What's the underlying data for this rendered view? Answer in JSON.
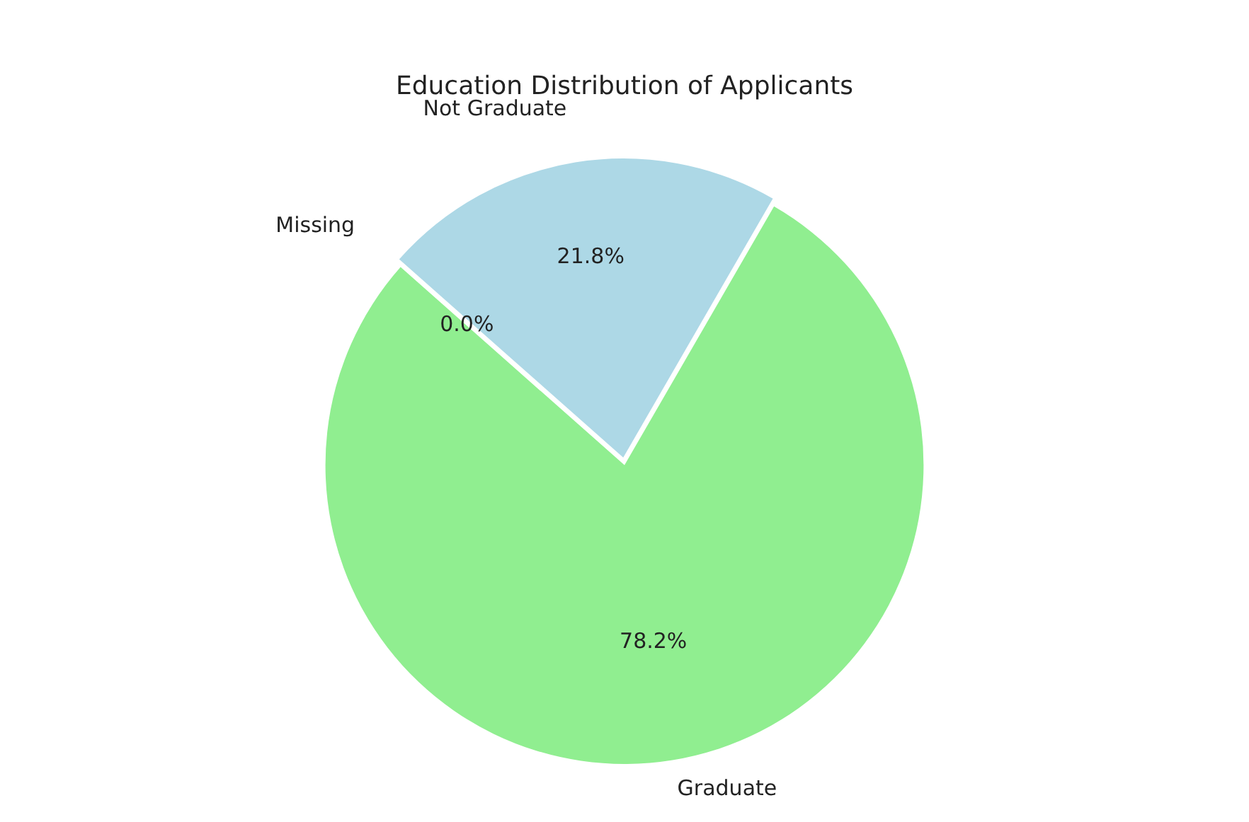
{
  "chart_data": {
    "type": "pie",
    "title": "Education Distribution of Applicants",
    "categories": [
      "Graduate",
      "Missing",
      "Not Graduate"
    ],
    "values": [
      78.2,
      0.0,
      21.8
    ],
    "colors": [
      "#90ee90",
      "#f08080",
      "#add8e6"
    ],
    "value_labels": [
      "78.2%",
      "0.0%",
      "21.8%"
    ],
    "legend": false
  }
}
